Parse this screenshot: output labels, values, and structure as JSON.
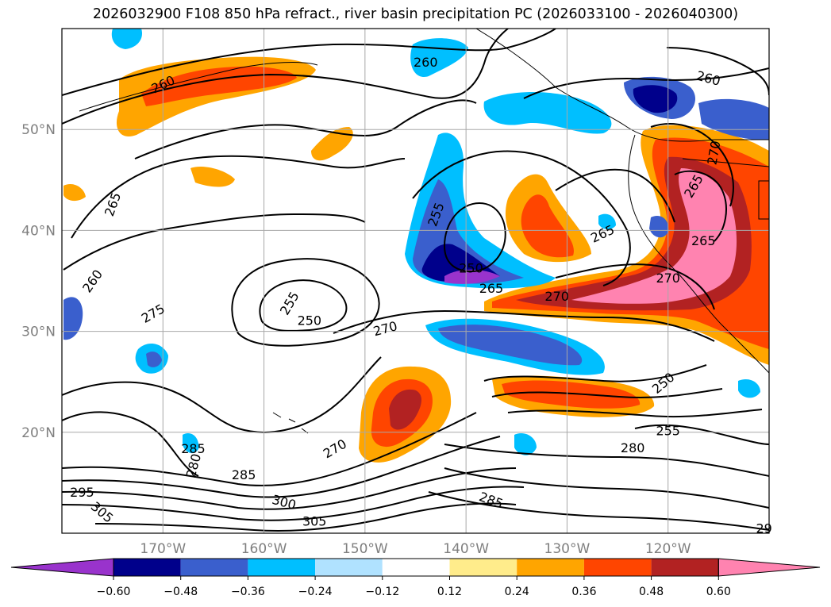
{
  "title": "2026032900 F108 850 hPa refract., river basin precipitation PC (2026033100 - 2026040300)",
  "map": {
    "lat_ticks": [
      {
        "deg": 50,
        "label": "50°N"
      },
      {
        "deg": 40,
        "label": "40°N"
      },
      {
        "deg": 30,
        "label": "30°N"
      },
      {
        "deg": 20,
        "label": "20°N"
      }
    ],
    "lon_ticks": [
      {
        "deg": -170,
        "label": "170°W"
      },
      {
        "deg": -160,
        "label": "160°W"
      },
      {
        "deg": -150,
        "label": "150°W"
      },
      {
        "deg": -140,
        "label": "140°W"
      },
      {
        "deg": -130,
        "label": "130°W"
      },
      {
        "deg": -120,
        "label": "120°W"
      }
    ],
    "contour_labels": [
      {
        "text": "260",
        "lon": -144,
        "lat": 56.7,
        "rot": 0
      },
      {
        "text": "260",
        "lon": -170,
        "lat": 54.5,
        "rot": -25
      },
      {
        "text": "260",
        "lon": -116,
        "lat": 55.1,
        "rot": 15
      },
      {
        "text": "265",
        "lon": -175,
        "lat": 42.6,
        "rot": -70
      },
      {
        "text": "260",
        "lon": -177,
        "lat": 35,
        "rot": -55
      },
      {
        "text": "255",
        "lon": -143,
        "lat": 41.6,
        "rot": -70
      },
      {
        "text": "250",
        "lon": -139.5,
        "lat": 36.3,
        "rot": 0
      },
      {
        "text": "265",
        "lon": -137.5,
        "lat": 34.3,
        "rot": 0
      },
      {
        "text": "270",
        "lon": -131,
        "lat": 33.5,
        "rot": 0
      },
      {
        "text": "265",
        "lon": -126.5,
        "lat": 39.7,
        "rot": -25
      },
      {
        "text": "275",
        "lon": -171,
        "lat": 31.8,
        "rot": -30
      },
      {
        "text": "255",
        "lon": -157.5,
        "lat": 32.8,
        "rot": -60
      },
      {
        "text": "250",
        "lon": -155.5,
        "lat": 31.1,
        "rot": 0
      },
      {
        "text": "270",
        "lon": -148,
        "lat": 30.3,
        "rot": -15
      },
      {
        "text": "265",
        "lon": -116.5,
        "lat": 39,
        "rot": 0
      },
      {
        "text": "265",
        "lon": -117.5,
        "lat": 44.4,
        "rot": -60
      },
      {
        "text": "270",
        "lon": -120,
        "lat": 35.3,
        "rot": 0
      },
      {
        "text": "250",
        "lon": -120.5,
        "lat": 24.9,
        "rot": -40
      },
      {
        "text": "255",
        "lon": -120,
        "lat": 20.2,
        "rot": 0
      },
      {
        "text": "280",
        "lon": -123.5,
        "lat": 18.5,
        "rot": 0
      },
      {
        "text": "285",
        "lon": -137.5,
        "lat": 13.3,
        "rot": 20
      },
      {
        "text": "270",
        "lon": -153,
        "lat": 18.4,
        "rot": -30
      },
      {
        "text": "285",
        "lon": -167,
        "lat": 18.4,
        "rot": 0
      },
      {
        "text": "280",
        "lon": -167,
        "lat": 16.7,
        "rot": -75
      },
      {
        "text": "285",
        "lon": -162,
        "lat": 15.8,
        "rot": 0
      },
      {
        "text": "300",
        "lon": -158,
        "lat": 13.1,
        "rot": 15
      },
      {
        "text": "295",
        "lon": -178,
        "lat": 14.1,
        "rot": 0
      },
      {
        "text": "305",
        "lon": -176,
        "lat": 12.1,
        "rot": 40
      },
      {
        "text": "305",
        "lon": -155,
        "lat": 11.2,
        "rot": 0
      },
      {
        "text": "29",
        "lon": -110.5,
        "lat": 10.5,
        "rot": 0
      },
      {
        "text": "270",
        "lon": -115.5,
        "lat": 47.7,
        "rot": -80
      }
    ]
  },
  "colorbar": {
    "colors": [
      "#9933cc",
      "#00008b",
      "#3a5fcd",
      "#00bfff",
      "#b0e2ff",
      "#ffffff",
      "#ffec8b",
      "#ffa500",
      "#ff4500",
      "#b22222",
      "#ff83b0"
    ],
    "tick_labels": [
      "−0.60",
      "−0.48",
      "−0.36",
      "−0.24",
      "−0.12",
      "0.12",
      "0.24",
      "0.36",
      "0.48",
      "0.60"
    ]
  }
}
